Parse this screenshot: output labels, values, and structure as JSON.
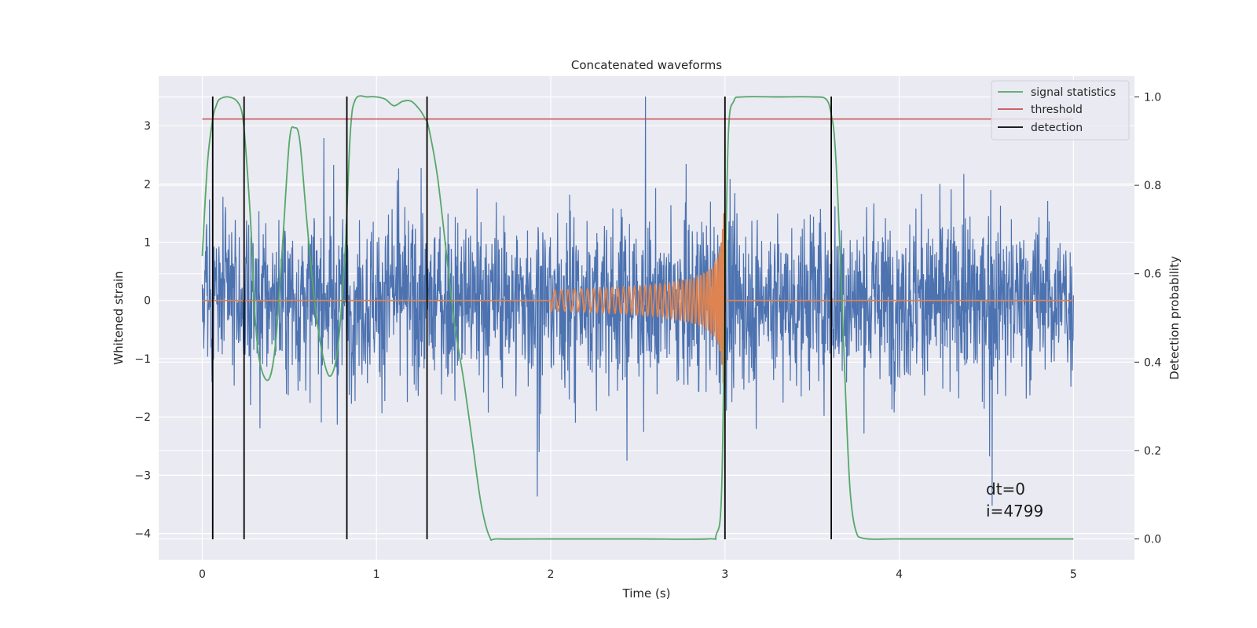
{
  "chart_data": {
    "type": "line",
    "title": "Concatenated waveforms",
    "xlabel": "Time (s)",
    "ylabel": "Whitened strain",
    "ylabel_right": "Detection probability",
    "xlim": [
      -0.25,
      5.35
    ],
    "ylim": [
      -4.45,
      3.85
    ],
    "ylim_right": [
      -0.047,
      1.047
    ],
    "x_ticks": [
      0,
      1,
      2,
      3,
      4,
      5
    ],
    "y_ticks": [
      -4,
      -3,
      -2,
      -1,
      0,
      1,
      2,
      3
    ],
    "y_ticks_right": [
      0.0,
      0.2,
      0.4,
      0.6,
      0.8,
      1.0
    ],
    "x_tick_labels": [
      "0",
      "1",
      "2",
      "3",
      "4",
      "5"
    ],
    "y_tick_labels": [
      "−4",
      "−3",
      "−2",
      "−1",
      "0",
      "1",
      "2",
      "3"
    ],
    "y_tick_labels_right": [
      "0.0",
      "0.2",
      "0.4",
      "0.6",
      "0.8",
      "1.0"
    ],
    "grid": true,
    "legend_position": "top-right",
    "series": [
      {
        "key": "strain",
        "color": "#4c72b0",
        "axis": "left",
        "description_values": {
          "x_range": [
            0,
            5
          ],
          "typical_amplitude": 1.2,
          "max": 3.5,
          "min": -3.9
        }
      },
      {
        "key": "injected_chirp",
        "color": "#dd8452",
        "axis": "left",
        "x_start": 2.0,
        "x_merger": 3.0,
        "amplitude_start": 0.18,
        "amplitude_peak": 1.5
      },
      {
        "name": "signal statistics",
        "color": "#55a868",
        "axis": "right",
        "x": [
          0,
          0.03,
          0.06,
          0.08,
          0.1,
          0.15,
          0.2,
          0.23,
          0.25,
          0.28,
          0.3,
          0.33,
          0.38,
          0.42,
          0.46,
          0.5,
          0.53,
          0.56,
          0.6,
          0.65,
          0.7,
          0.74,
          0.78,
          0.82,
          0.85,
          0.88,
          0.95,
          1.0,
          1.05,
          1.1,
          1.15,
          1.2,
          1.25,
          1.28,
          1.3,
          1.35,
          1.4,
          1.45,
          1.5,
          1.55,
          1.6,
          1.65,
          1.7,
          2.0,
          2.5,
          2.9,
          2.95,
          2.98,
          3.0,
          3.02,
          3.05,
          3.1,
          3.3,
          3.5,
          3.58,
          3.61,
          3.63,
          3.65,
          3.68,
          3.7,
          3.72,
          3.75,
          3.8,
          4.0,
          4.5,
          5.0
        ],
        "y": [
          0.64,
          0.85,
          0.95,
          0.98,
          0.995,
          1.0,
          0.99,
          0.96,
          0.88,
          0.7,
          0.52,
          0.4,
          0.36,
          0.44,
          0.66,
          0.9,
          0.93,
          0.9,
          0.72,
          0.52,
          0.4,
          0.37,
          0.44,
          0.65,
          0.92,
          0.995,
          1.0,
          1.0,
          0.995,
          0.98,
          0.99,
          0.99,
          0.97,
          0.95,
          0.93,
          0.82,
          0.65,
          0.48,
          0.36,
          0.22,
          0.08,
          0.004,
          0.0,
          0.0,
          0.0,
          0.0,
          0.01,
          0.1,
          0.55,
          0.92,
          0.99,
          1.0,
          1.0,
          1.0,
          0.995,
          0.96,
          0.9,
          0.75,
          0.45,
          0.25,
          0.1,
          0.02,
          0.001,
          0.0,
          0.0,
          0.0
        ]
      },
      {
        "name": "threshold",
        "color": "#c44e52",
        "axis": "right",
        "x": [
          0,
          5
        ],
        "y": [
          0.95,
          0.95
        ]
      },
      {
        "name": "detection",
        "color": "#000000",
        "axis": "left",
        "x_positions": [
          0.06,
          0.24,
          0.83,
          1.29,
          3.0,
          3.61
        ],
        "y_range": [
          -4.1,
          3.5
        ]
      }
    ],
    "annotations": [
      "dt=0",
      "i=4799"
    ]
  }
}
